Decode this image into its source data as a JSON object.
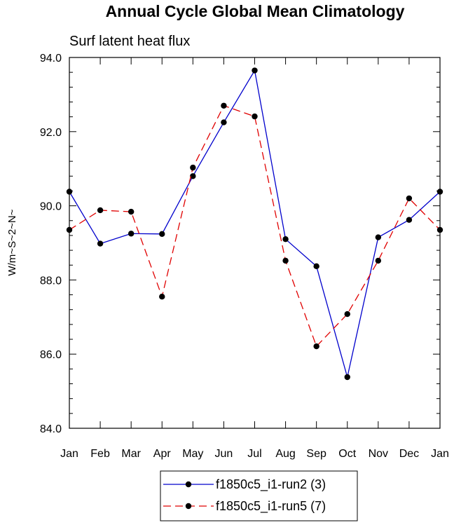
{
  "chart_data": {
    "type": "line",
    "title": "Annual Cycle Global Mean Climatology",
    "subtitle": "Surf latent heat flux",
    "xlabel": "",
    "ylabel": "W/m~S~2~N~",
    "categories": [
      "Jan",
      "Feb",
      "Mar",
      "Apr",
      "May",
      "Jun",
      "Jul",
      "Aug",
      "Sep",
      "Oct",
      "Nov",
      "Dec",
      "Jan"
    ],
    "ylim": [
      84.0,
      94.0
    ],
    "yticks": [
      84.0,
      86.0,
      88.0,
      90.0,
      92.0,
      94.0
    ],
    "ytick_labels": [
      "84.0",
      "86.0",
      "88.0",
      "90.0",
      "92.0",
      "94.0"
    ],
    "series": [
      {
        "name": "f1850c5_i1-run2 (3)",
        "color": "#0000cc",
        "dash": "solid",
        "values": [
          90.38,
          88.98,
          89.25,
          89.24,
          90.8,
          92.25,
          93.65,
          89.1,
          88.37,
          85.38,
          89.15,
          89.62,
          90.38
        ]
      },
      {
        "name": "f1850c5_i1-run5 (7)",
        "color": "#e00000",
        "dash": "dashed",
        "values": [
          89.35,
          89.88,
          89.84,
          87.55,
          91.03,
          92.7,
          92.41,
          88.52,
          86.21,
          87.08,
          88.52,
          90.2,
          89.35
        ]
      }
    ],
    "grid": false,
    "legend_position": "bottom-center"
  }
}
